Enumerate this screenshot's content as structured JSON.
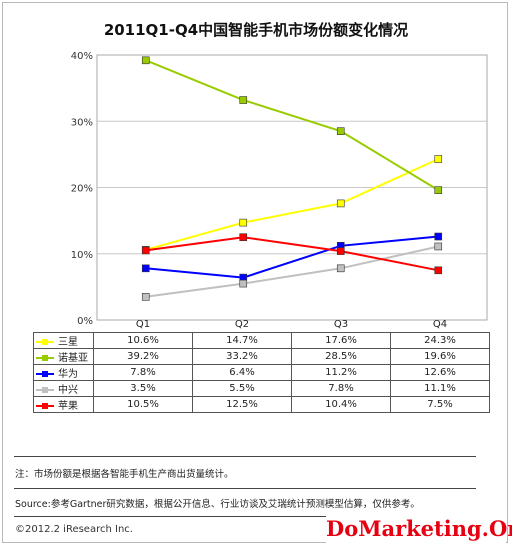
{
  "chart_data": {
    "type": "line",
    "title": "2011Q1-Q4中国智能手机市场份额变化情况",
    "categories": [
      "Q1",
      "Q2",
      "Q3",
      "Q4"
    ],
    "ylim": [
      0,
      40
    ],
    "yticks": [
      "0%",
      "10%",
      "20%",
      "30%",
      "40%"
    ],
    "grid": true,
    "legend": "table-left",
    "series": [
      {
        "name": "三星",
        "color": "#ffff00",
        "values": [
          10.6,
          14.7,
          17.6,
          24.3
        ],
        "labels": [
          "10.6%",
          "14.7%",
          "17.6%",
          "24.3%"
        ]
      },
      {
        "name": "诺基亚",
        "color": "#99cc00",
        "values": [
          39.2,
          33.2,
          28.5,
          19.6
        ],
        "labels": [
          "39.2%",
          "33.2%",
          "28.5%",
          "19.6%"
        ]
      },
      {
        "name": "华为",
        "color": "#0000ff",
        "values": [
          7.8,
          6.4,
          11.2,
          12.6
        ],
        "labels": [
          "7.8%",
          "6.4%",
          "11.2%",
          "12.6%"
        ]
      },
      {
        "name": "中兴",
        "color": "#c0c0c0",
        "values": [
          3.5,
          5.5,
          7.8,
          11.1
        ],
        "labels": [
          "3.5%",
          "5.5%",
          "7.8%",
          "11.1%"
        ]
      },
      {
        "name": "苹果",
        "color": "#ff0000",
        "values": [
          10.5,
          12.5,
          10.4,
          7.5
        ],
        "labels": [
          "10.5%",
          "12.5%",
          "10.4%",
          "7.5%"
        ]
      }
    ]
  },
  "note": "注：市场份额是根据各智能手机生产商出货量统计。",
  "source": "Source:参考Gartner研究数据，根据公开信息、行业访谈及艾瑞统计预测模型估算，仅供参考。",
  "copyright": "©2012.2 iResearch Inc.",
  "watermark": "DoMarketing.Org"
}
